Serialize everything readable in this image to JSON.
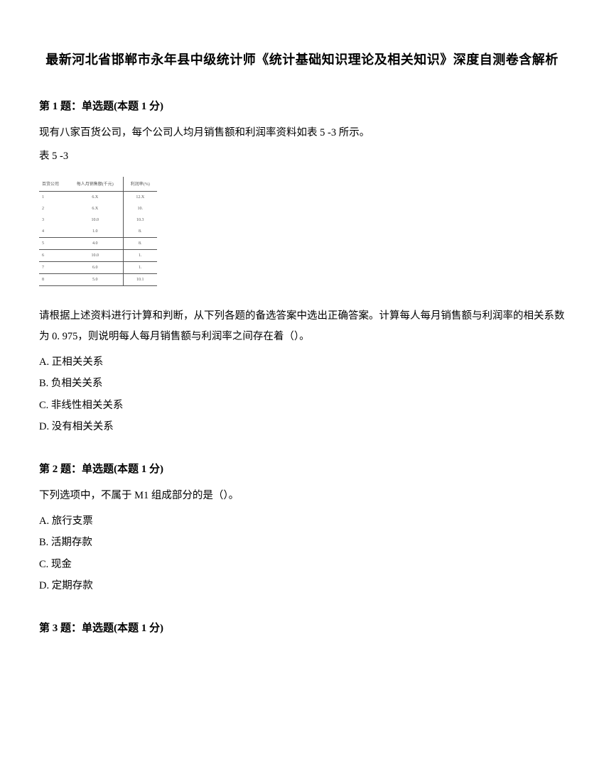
{
  "title": "最新河北省邯郸市永年县中级统计师《统计基础知识理论及相关知识》深度自测卷含解析",
  "q1": {
    "header": "第 1 题：单选题(本题 1 分)",
    "intro": "现有八家百货公司，每个公司人均月销售额和利润率资料如表 5 -3 所示。",
    "tableCaption": "表 5 -3",
    "tableHeader": {
      "a": "百货公司",
      "b": "每人月销售额(千元)",
      "c": "利润率(%)"
    },
    "rows": [
      {
        "a": "1",
        "b": "6.X",
        "c": "12.X"
      },
      {
        "a": "2",
        "b": "6.X",
        "c": "10."
      },
      {
        "a": "3",
        "b": "10.0",
        "c": "10.3"
      },
      {
        "a": "4",
        "b": "1.0",
        "c": "8."
      },
      {
        "a": "5",
        "b": "4.0",
        "c": "8."
      },
      {
        "a": "6",
        "b": "10.0",
        "c": "1."
      },
      {
        "a": "7",
        "b": "6.0",
        "c": "1."
      },
      {
        "a": "8",
        "b": "5.0",
        "c": "10.1"
      }
    ],
    "stem": "请根据上述资料进行计算和判断，从下列各题的备选答案中选出正确答案。计算每人每月销售额与利润率的相关系数为 0. 975，则说明每人每月销售额与利润率之间存在着（）。",
    "options": {
      "A": "A. 正相关关系",
      "B": "B. 负相关关系",
      "C": "C. 非线性相关关系",
      "D": "D. 没有相关关系"
    }
  },
  "q2": {
    "header": "第 2 题：单选题(本题 1 分)",
    "stem": "下列选项中，不属于 M1 组成部分的是（）。",
    "options": {
      "A": "A. 旅行支票",
      "B": "B. 活期存款",
      "C": "C. 现金",
      "D": "D. 定期存款"
    }
  },
  "q3": {
    "header": "第 3 题：单选题(本题 1 分)"
  }
}
